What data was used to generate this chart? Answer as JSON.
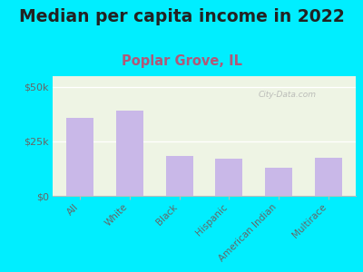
{
  "title": "Median per capita income in 2022",
  "subtitle": "Poplar Grove, IL",
  "categories": [
    "All",
    "White",
    "Black",
    "Hispanic",
    "American Indian",
    "Multirace"
  ],
  "values": [
    36000,
    39000,
    18500,
    17000,
    13000,
    17500
  ],
  "bar_color": "#c9b8e8",
  "background_outer": "#00eeff",
  "background_inner": "#eef4e4",
  "yticks": [
    0,
    25000,
    50000
  ],
  "yticklabels": [
    "$0",
    "$25k",
    "$50k"
  ],
  "ylim": [
    0,
    55000
  ],
  "title_fontsize": 13.5,
  "subtitle_fontsize": 10.5,
  "subtitle_color": "#b05878",
  "title_color": "#222222",
  "tick_color": "#666666",
  "watermark": "City-Data.com",
  "grid_color": "#ffffff",
  "bottom_spine_color": "#bbbbbb"
}
